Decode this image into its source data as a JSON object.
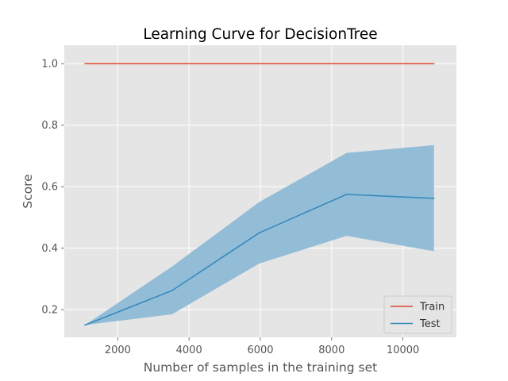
{
  "chart_data": {
    "type": "line",
    "title": "Learning Curve for DecisionTree",
    "xlabel": "Number of samples in the training set",
    "ylabel": "Score",
    "xlim": [
      500,
      11500
    ],
    "ylim": [
      0.11,
      1.06
    ],
    "xticks": [
      2000,
      4000,
      6000,
      8000,
      10000
    ],
    "yticks": [
      0.2,
      0.4,
      0.6,
      0.8,
      1.0
    ],
    "xtick_labels": [
      "2000",
      "4000",
      "6000",
      "8000",
      "10000"
    ],
    "ytick_labels": [
      "0.2",
      "0.4",
      "0.6",
      "0.8",
      "1.0"
    ],
    "x": [
      1080,
      3520,
      5970,
      8420,
      10870
    ],
    "series": [
      {
        "name": "Train",
        "values": [
          1.0,
          1.0,
          1.0,
          1.0,
          1.0
        ],
        "color": "#E24A33"
      },
      {
        "name": "Test",
        "values": [
          0.15,
          0.262,
          0.45,
          0.575,
          0.562
        ],
        "color": "#348ABD",
        "band_lower": [
          0.15,
          0.185,
          0.35,
          0.44,
          0.39
        ],
        "band_upper": [
          0.15,
          0.34,
          0.55,
          0.71,
          0.735
        ],
        "band_color": "#8EBAD6"
      }
    ],
    "grid": true,
    "legend_position": "lower-right",
    "style": {
      "background": "#E5E5E5",
      "grid_color": "#FFFFFF",
      "axis_edge": "#FFFFFF"
    }
  }
}
